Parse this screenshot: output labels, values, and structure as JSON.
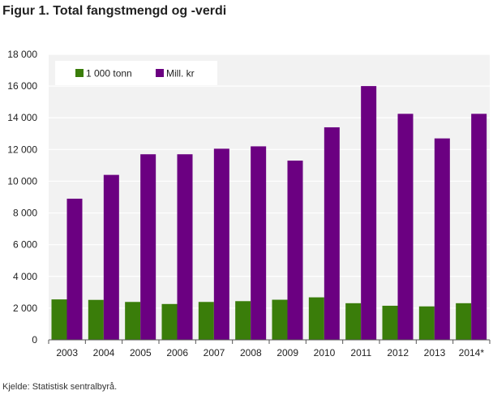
{
  "figure": {
    "title": "Figur 1. Total fangstmengd og -verdi",
    "source": "Kjelde: Statistisk sentralbyrå."
  },
  "chart_data": {
    "type": "bar",
    "categories": [
      "2003",
      "2004",
      "2005",
      "2006",
      "2007",
      "2008",
      "2009",
      "2010",
      "2011",
      "2012",
      "2013",
      "2014*"
    ],
    "series": [
      {
        "name": "1 000 tonn",
        "color": "#3a7d0a",
        "values": [
          2550,
          2520,
          2390,
          2260,
          2390,
          2440,
          2530,
          2680,
          2310,
          2150,
          2110,
          2310
        ]
      },
      {
        "name": "Mill. kr",
        "color": "#6b0081",
        "values": [
          8900,
          10400,
          11700,
          11700,
          12050,
          12200,
          11300,
          13400,
          16000,
          14250,
          12700,
          14250
        ]
      }
    ],
    "ylim": [
      0,
      18000
    ],
    "yticks": [
      0,
      2000,
      4000,
      6000,
      8000,
      10000,
      12000,
      14000,
      16000,
      18000
    ],
    "ytick_labels": [
      "0",
      "2 000",
      "4 000",
      "6 000",
      "8 000",
      "10 000",
      "12 000",
      "14 000",
      "16 000",
      "18 000"
    ],
    "grid": true,
    "legend_position": "top-left",
    "background": "#f2f2f2"
  }
}
